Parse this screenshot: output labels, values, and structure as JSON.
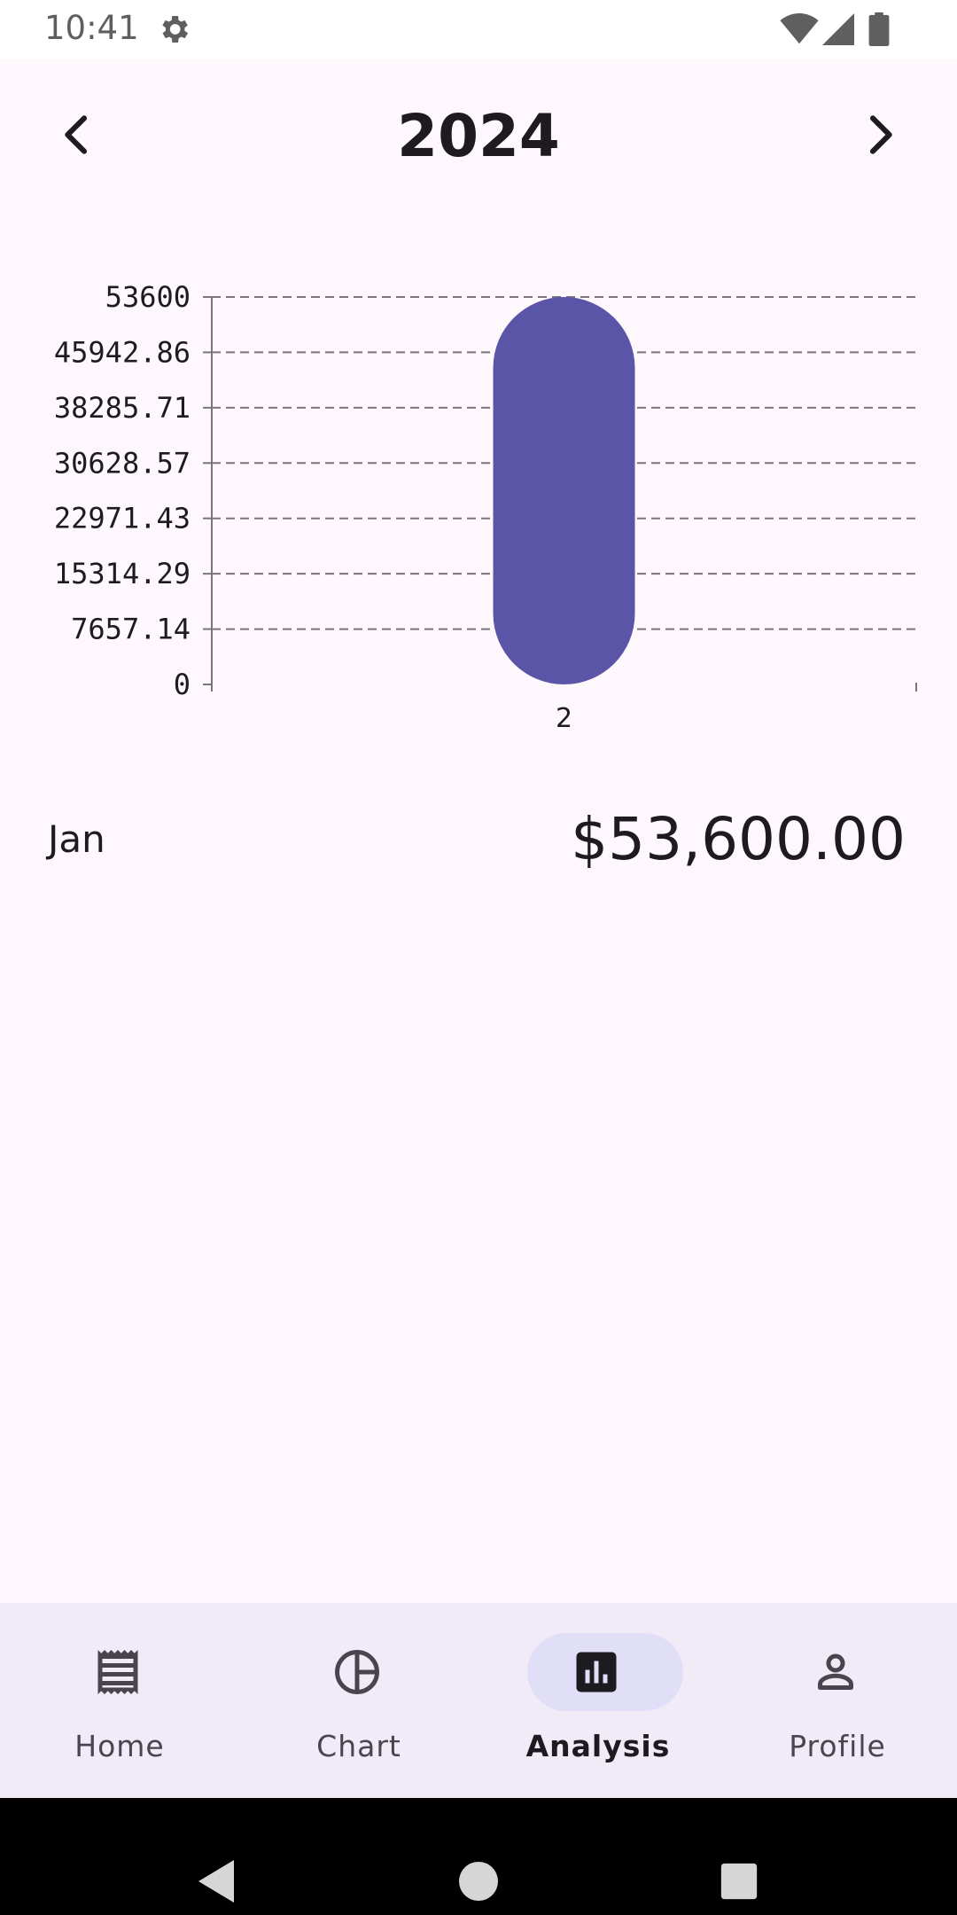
{
  "status_bar": {
    "time": "10:41",
    "icons": [
      "gear-icon",
      "wifi-icon",
      "signal-icon",
      "battery-icon"
    ]
  },
  "header": {
    "year": "2024",
    "prev_icon": "chevron-left-icon",
    "next_icon": "chevron-right-icon"
  },
  "chart_data": {
    "type": "bar",
    "categories": [
      "2"
    ],
    "values": [
      53600
    ],
    "y_ticks": [
      "53600",
      "45942.86",
      "38285.71",
      "30628.57",
      "22971.43",
      "15314.29",
      "7657.14",
      "0"
    ],
    "ylim": [
      0,
      53600
    ],
    "grid": true,
    "bar_color": "#5a55a6",
    "title": "",
    "xlabel": "",
    "ylabel": ""
  },
  "summary": {
    "month": "Jan",
    "amount": "$53,600.00"
  },
  "bottom_nav": {
    "items": [
      {
        "label": "Home",
        "icon": "receipt-icon",
        "active": false
      },
      {
        "label": "Chart",
        "icon": "pie-chart-icon",
        "active": false
      },
      {
        "label": "Analysis",
        "icon": "bar-chart-icon",
        "active": true
      },
      {
        "label": "Profile",
        "icon": "person-icon",
        "active": false
      }
    ],
    "active_pill_color": "#e1dff8",
    "background": "#f0ebf6"
  },
  "system_nav": {
    "icons": [
      "back-icon",
      "home-icon",
      "recents-icon"
    ]
  }
}
